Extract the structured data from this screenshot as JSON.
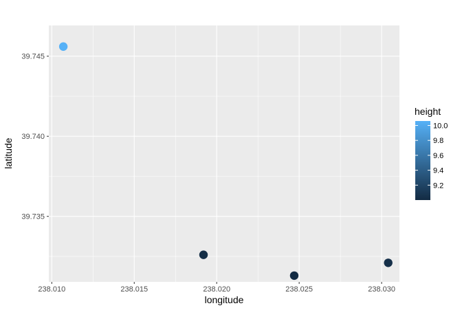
{
  "chart_data": {
    "type": "scatter",
    "xlabel": "longitude",
    "ylabel": "latitude",
    "xlim": [
      238.00982,
      238.03108
    ],
    "ylim": [
      39.73091,
      39.74692
    ],
    "x_ticks": [
      {
        "value": 238.01,
        "label": "238.010"
      },
      {
        "value": 238.015,
        "label": "238.015"
      },
      {
        "value": 238.02,
        "label": "238.020"
      },
      {
        "value": 238.025,
        "label": "238.025"
      },
      {
        "value": 238.03,
        "label": "238.030"
      }
    ],
    "y_ticks": [
      {
        "value": 39.735,
        "label": "39.735"
      },
      {
        "value": 39.74,
        "label": "39.740"
      },
      {
        "value": 39.745,
        "label": "39.745"
      }
    ],
    "grid": true,
    "points": [
      {
        "x": 238.0107,
        "y": 39.7456,
        "height": 10.06
      },
      {
        "x": 238.0192,
        "y": 39.7326,
        "height": 9.02
      },
      {
        "x": 238.0247,
        "y": 39.7313,
        "height": 9.0
      },
      {
        "x": 238.0304,
        "y": 39.7321,
        "height": 9.04
      }
    ],
    "legend": {
      "title": "height",
      "position": "right",
      "range": [
        9.0,
        10.06
      ],
      "ticks": [
        {
          "value": 9.2,
          "label": "9.2"
        },
        {
          "value": 9.4,
          "label": "9.4"
        },
        {
          "value": 9.6,
          "label": "9.6"
        },
        {
          "value": 9.8,
          "label": "9.8"
        },
        {
          "value": 10.0,
          "label": "10.0"
        }
      ],
      "color_low": "#132B43",
      "color_high": "#56B1F7"
    },
    "colors": {
      "panel_background": "#EBEBEB",
      "grid_line": "#FFFFFF",
      "tick_text": "#4D4D4D",
      "tick_mark": "#333333"
    }
  }
}
